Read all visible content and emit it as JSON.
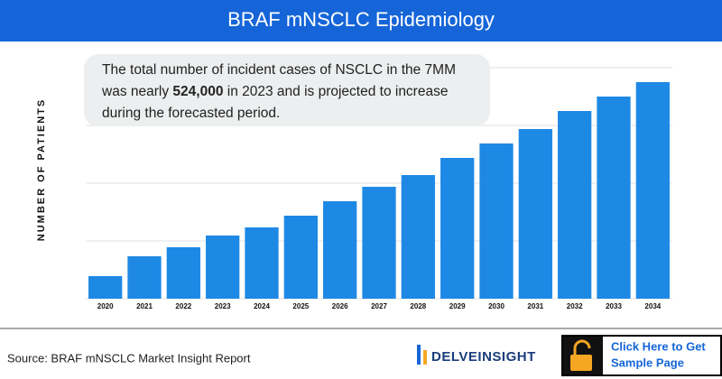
{
  "chart_data": {
    "type": "bar",
    "title": "BRAF mNSCLC Epidemiology",
    "y_label": "NUMBER OF PATIENTS",
    "annotation": {
      "line1": "The total number of incident cases of NSCLC in the 7MM",
      "line2_before": "was nearly ",
      "line2_bold": "524,000",
      "line2_after": " in 2023 and is projected to increase",
      "line3": "during the forecasted period."
    },
    "categories": [
      "2020",
      "2021",
      "2022",
      "2023",
      "2024",
      "2025",
      "2026",
      "2027",
      "2028",
      "2029",
      "2030",
      "2031",
      "2032",
      "2033",
      "2034"
    ],
    "values": [
      25,
      47,
      57,
      70,
      79,
      92,
      108,
      124,
      137,
      156,
      172,
      188,
      208,
      224,
      240
    ],
    "color": "#1e88e5",
    "ylim": [
      0,
      256
    ],
    "yticks": [
      0,
      64,
      128,
      192,
      256
    ],
    "grid": true
  },
  "footer": {
    "source": "Source: BRAF mNSCLC Market Insight Report",
    "logo": "DELVEINSIGHT",
    "button_line1": "Click Here to Get",
    "button_line2": "Sample Page"
  }
}
